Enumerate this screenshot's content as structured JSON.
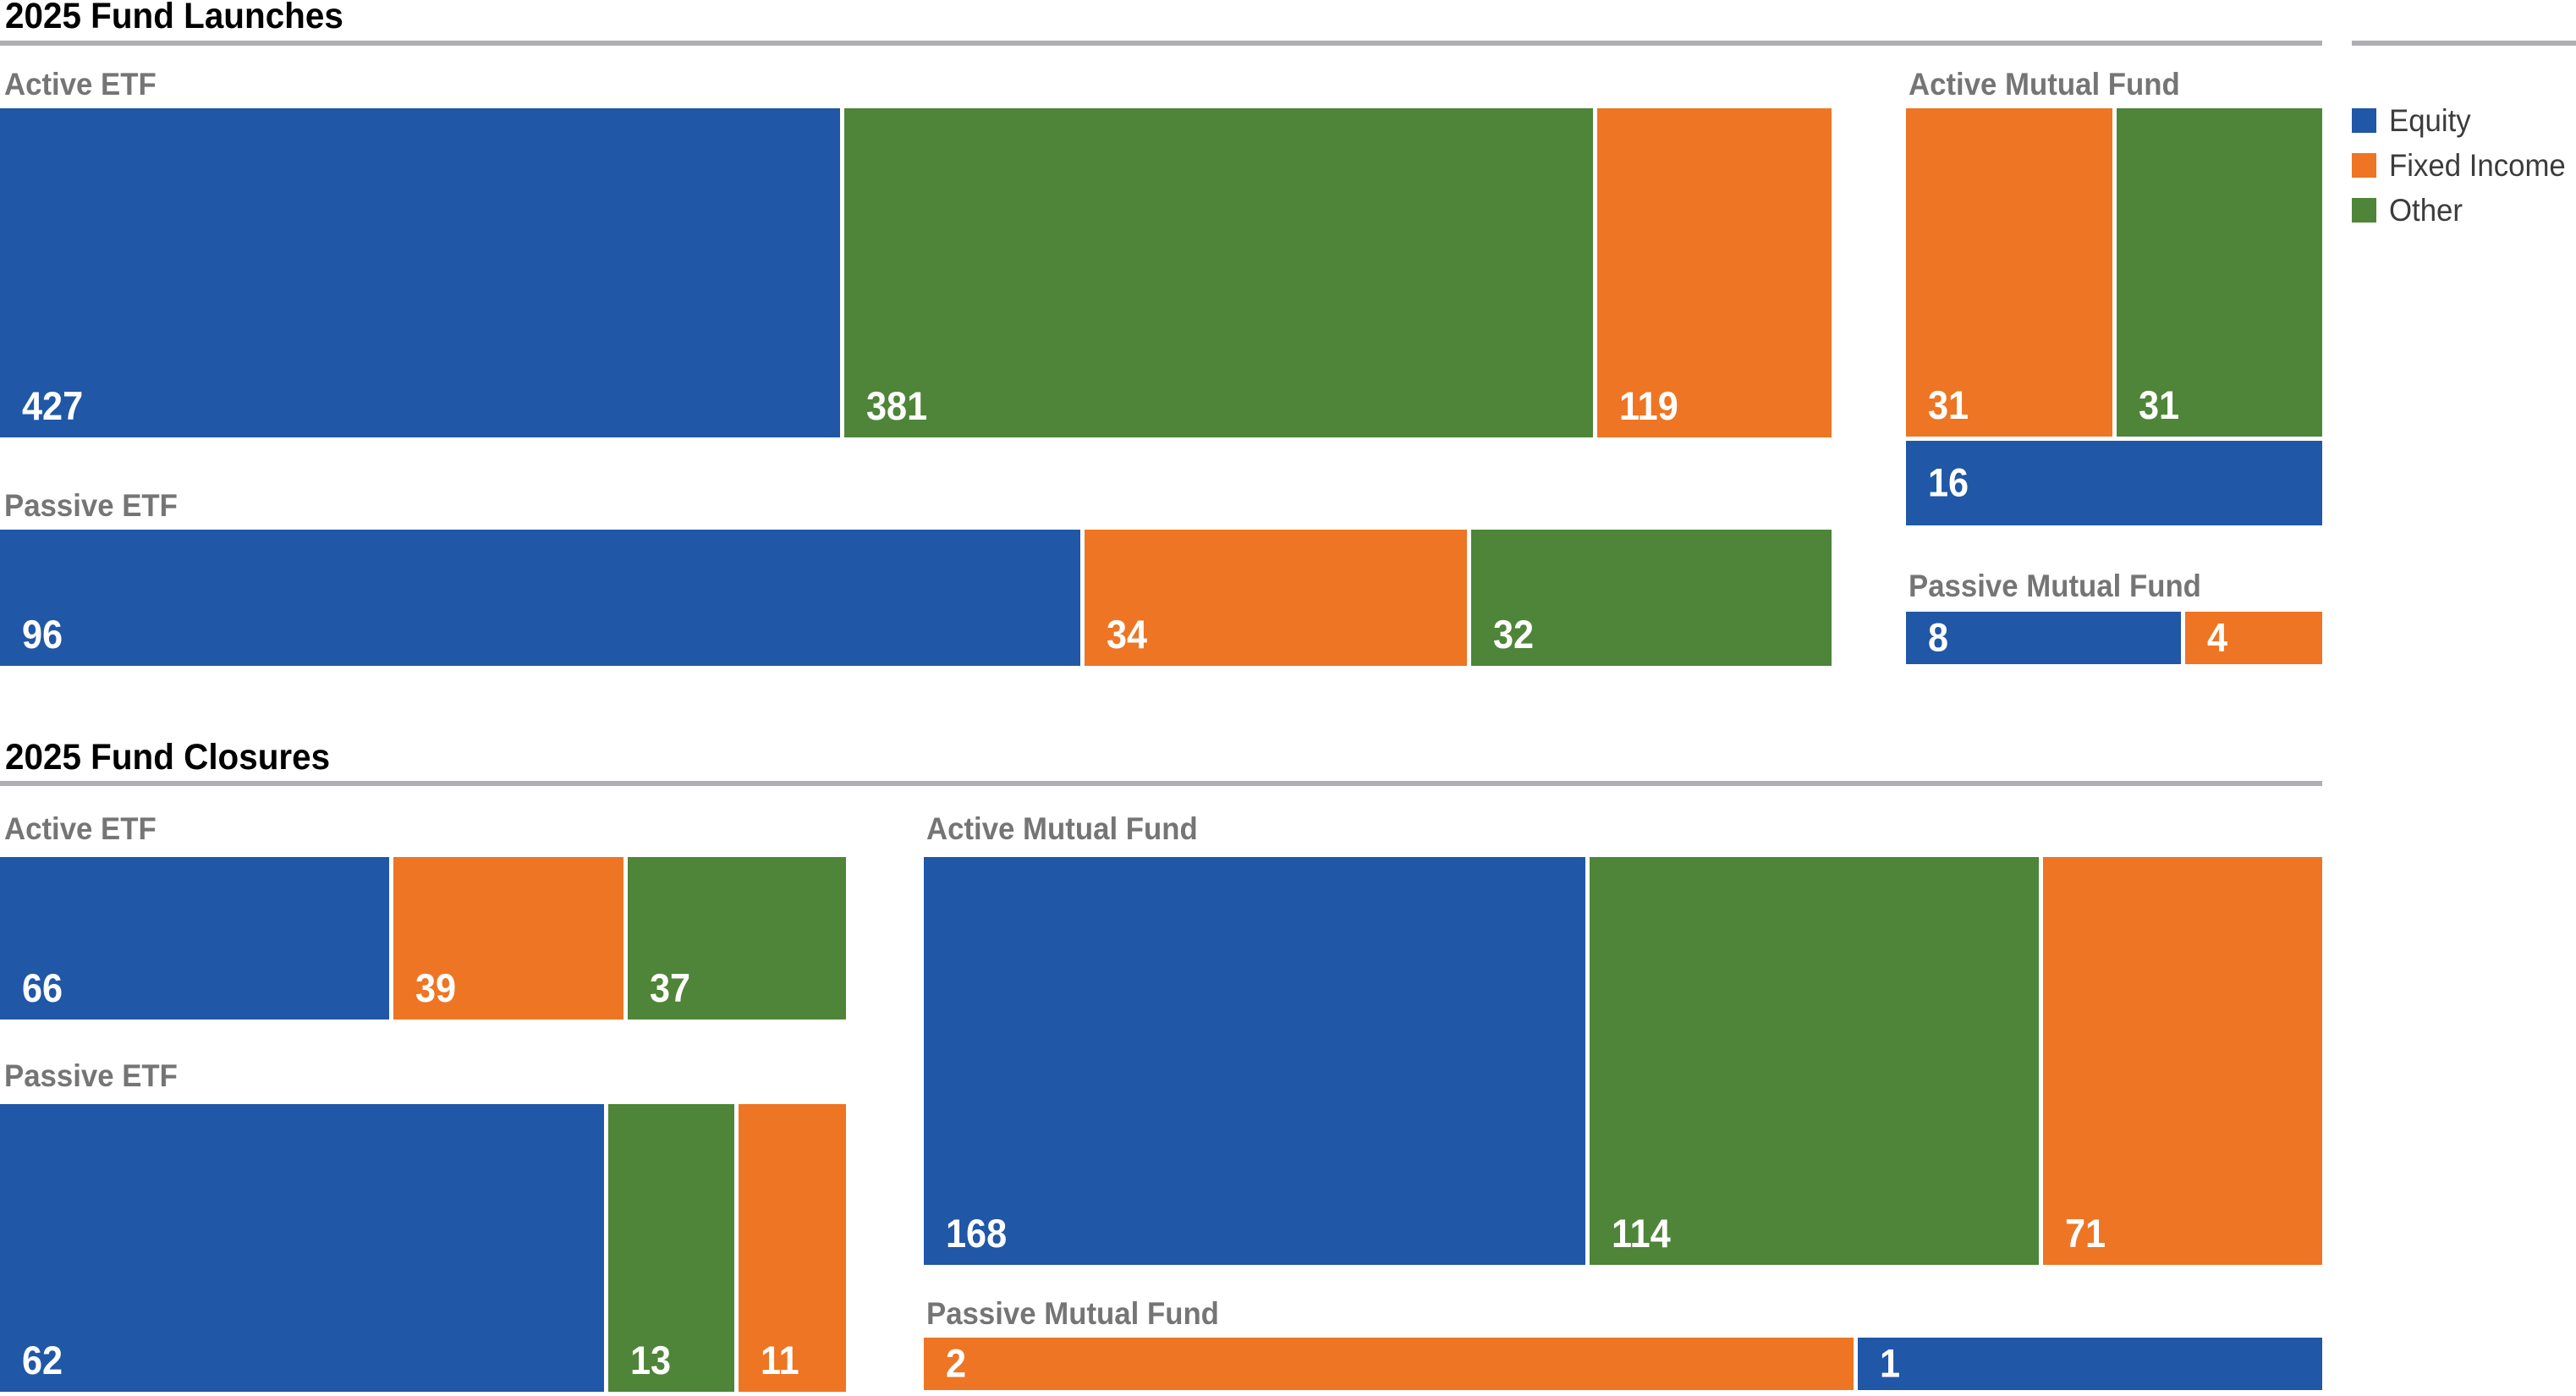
{
  "chart_data": {
    "type": "treemap",
    "description": "Two groups of treemaps showing 2025 fund launches and closures by vehicle type, split by asset class",
    "palette": {
      "equity": "#2057a7",
      "fixed_income": "#ee7523",
      "other": "#4e8538"
    },
    "rule_color": "#aeaeb4",
    "legend": {
      "position": "top-right",
      "items": [
        {
          "label": "Equity",
          "color_key": "equity"
        },
        {
          "label": "Fixed Income",
          "color_key": "fixed_income"
        },
        {
          "label": "Other",
          "color_key": "other"
        }
      ]
    },
    "sections": [
      {
        "id": "fund-launches",
        "title": "2025 Fund Launches",
        "groups": [
          {
            "id": "launches-active-etf",
            "label": "Active ETF",
            "rows": [
              [
                {
                  "category": "Equity",
                  "value": 427,
                  "color_key": "equity"
                },
                {
                  "category": "Other",
                  "value": 381,
                  "color_key": "other"
                },
                {
                  "category": "Fixed Income",
                  "value": 119,
                  "color_key": "fixed_income"
                }
              ]
            ]
          },
          {
            "id": "launches-passive-etf",
            "label": "Passive ETF",
            "rows": [
              [
                {
                  "category": "Equity",
                  "value": 96,
                  "color_key": "equity"
                },
                {
                  "category": "Fixed Income",
                  "value": 34,
                  "color_key": "fixed_income"
                },
                {
                  "category": "Other",
                  "value": 32,
                  "color_key": "other"
                }
              ]
            ]
          },
          {
            "id": "launches-active-mutual-fund",
            "label": "Active Mutual Fund",
            "rows": [
              [
                {
                  "category": "Fixed Income",
                  "value": 31,
                  "color_key": "fixed_income"
                },
                {
                  "category": "Other",
                  "value": 31,
                  "color_key": "other"
                }
              ],
              [
                {
                  "category": "Equity",
                  "value": 16,
                  "color_key": "equity"
                }
              ]
            ]
          },
          {
            "id": "launches-passive-mutual-fund",
            "label": "Passive Mutual Fund",
            "rows": [
              [
                {
                  "category": "Equity",
                  "value": 8,
                  "color_key": "equity"
                },
                {
                  "category": "Fixed Income",
                  "value": 4,
                  "color_key": "fixed_income"
                }
              ]
            ]
          }
        ]
      },
      {
        "id": "fund-closures",
        "title": "2025 Fund Closures",
        "groups": [
          {
            "id": "closures-active-etf",
            "label": "Active ETF",
            "rows": [
              [
                {
                  "category": "Equity",
                  "value": 66,
                  "color_key": "equity"
                },
                {
                  "category": "Fixed Income",
                  "value": 39,
                  "color_key": "fixed_income"
                },
                {
                  "category": "Other",
                  "value": 37,
                  "color_key": "other"
                }
              ]
            ]
          },
          {
            "id": "closures-passive-etf",
            "label": "Passive ETF",
            "rows": [
              [
                {
                  "category": "Equity",
                  "value": 62,
                  "color_key": "equity"
                },
                {
                  "category": "Other",
                  "value": 13,
                  "color_key": "other"
                },
                {
                  "category": "Fixed Income",
                  "value": 11,
                  "color_key": "fixed_income"
                }
              ]
            ]
          },
          {
            "id": "closures-active-mutual-fund",
            "label": "Active Mutual Fund",
            "rows": [
              [
                {
                  "category": "Equity",
                  "value": 168,
                  "color_key": "equity"
                },
                {
                  "category": "Other",
                  "value": 114,
                  "color_key": "other"
                },
                {
                  "category": "Fixed Income",
                  "value": 71,
                  "color_key": "fixed_income"
                }
              ]
            ]
          },
          {
            "id": "closures-passive-mutual-fund",
            "label": "Passive Mutual Fund",
            "rows": [
              [
                {
                  "category": "Fixed Income",
                  "value": 2,
                  "color_key": "fixed_income"
                },
                {
                  "category": "Equity",
                  "value": 1,
                  "color_key": "equity"
                }
              ]
            ]
          }
        ]
      }
    ]
  }
}
